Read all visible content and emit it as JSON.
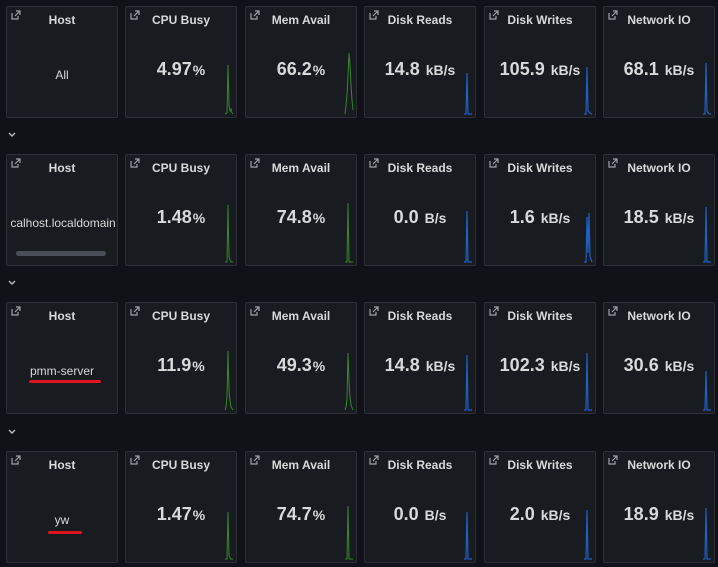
{
  "colors": {
    "cpu": "#37872d",
    "mem": "#37872d",
    "disk": "#1f60c4",
    "net": "#1f60c4",
    "highlight": "#e0141e"
  },
  "column_titles": [
    "Host",
    "CPU Busy",
    "Mem Avail",
    "Disk Reads",
    "Disk Writes",
    "Network IO"
  ],
  "rows": [
    {
      "host": "All",
      "cpu": {
        "num": "4.97",
        "unit": "%"
      },
      "mem": {
        "num": "66.2",
        "unit": "%"
      },
      "disk_reads": {
        "num": "14.8",
        "unit": "kB/s"
      },
      "disk_writes": {
        "num": "105.9",
        "unit": "kB/s"
      },
      "network": {
        "num": "68.1",
        "unit": "kB/s"
      }
    },
    {
      "host": "localhost.localdomain",
      "cpu": {
        "num": "1.48",
        "unit": "%"
      },
      "mem": {
        "num": "74.8",
        "unit": "%"
      },
      "disk_reads": {
        "num": "0.0",
        "unit": "B/s"
      },
      "disk_writes": {
        "num": "1.6",
        "unit": "kB/s"
      },
      "network": {
        "num": "18.5",
        "unit": "kB/s"
      }
    },
    {
      "host": "pmm-server",
      "cpu": {
        "num": "11.9",
        "unit": "%"
      },
      "mem": {
        "num": "49.3",
        "unit": "%"
      },
      "disk_reads": {
        "num": "14.8",
        "unit": "kB/s"
      },
      "disk_writes": {
        "num": "102.3",
        "unit": "kB/s"
      },
      "network": {
        "num": "30.6",
        "unit": "kB/s"
      }
    },
    {
      "host": "yw",
      "cpu": {
        "num": "1.47",
        "unit": "%"
      },
      "mem": {
        "num": "74.7",
        "unit": "%"
      },
      "disk_reads": {
        "num": "0.0",
        "unit": "B/s"
      },
      "disk_writes": {
        "num": "2.0",
        "unit": "kB/s"
      },
      "network": {
        "num": "18.9",
        "unit": "kB/s"
      }
    }
  ]
}
